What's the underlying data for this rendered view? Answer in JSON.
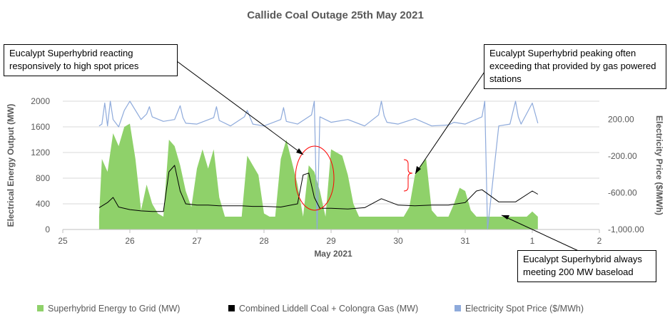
{
  "chart_data": {
    "type": "area",
    "title": "Callide Coal Outage 25th May 2021",
    "xlabel": "May 2021",
    "ylabel_left": "Electrical Energy Output (MW)",
    "ylabel_right": "Electricity Price ($/MWh)",
    "x_ticks": [
      "25",
      "26",
      "27",
      "28",
      "29",
      "30",
      "31",
      "1",
      "2"
    ],
    "x_range": [
      "2021-05-25",
      "2021-06-02"
    ],
    "ylim_left": [
      0,
      2000
    ],
    "y_ticks_left": [
      "0",
      "400",
      "800",
      "1200",
      "1600",
      "2000"
    ],
    "ylim_right": [
      -1000,
      400
    ],
    "y_ticks_right": [
      "-1,000.00",
      "-600.00",
      "-200.00",
      "200.00"
    ],
    "grid": "horizontal",
    "legend_position": "bottom",
    "series": [
      {
        "name": "Superhybrid Energy to Grid (MW)",
        "type": "area",
        "axis": "left",
        "color": "#8fd16a",
        "x": [
          "2021-05-25 13:00",
          "2021-05-25 14:00",
          "2021-05-25 16:00",
          "2021-05-25 18:00",
          "2021-05-25 20:00",
          "2021-05-25 22:00",
          "2021-05-26 00:00",
          "2021-05-26 02:00",
          "2021-05-26 04:00",
          "2021-05-26 06:00",
          "2021-05-26 08:00",
          "2021-05-26 10:00",
          "2021-05-26 12:00",
          "2021-05-26 14:00",
          "2021-05-26 16:00",
          "2021-05-26 18:00",
          "2021-05-26 20:00",
          "2021-05-26 22:00",
          "2021-05-27 00:00",
          "2021-05-27 02:00",
          "2021-05-27 04:00",
          "2021-05-27 06:00",
          "2021-05-27 08:00",
          "2021-05-27 10:00",
          "2021-05-27 12:00",
          "2021-05-27 14:00",
          "2021-05-27 16:00",
          "2021-05-27 18:00",
          "2021-05-27 20:00",
          "2021-05-27 22:00",
          "2021-05-28 00:00",
          "2021-05-28 02:00",
          "2021-05-28 04:00",
          "2021-05-28 06:00",
          "2021-05-28 08:00",
          "2021-05-28 10:00",
          "2021-05-28 12:00",
          "2021-05-28 14:00",
          "2021-05-28 16:00",
          "2021-05-28 18:00",
          "2021-05-28 20:00",
          "2021-05-28 22:00",
          "2021-05-29 00:00",
          "2021-05-29 02:00",
          "2021-05-29 04:00",
          "2021-05-29 06:00",
          "2021-05-29 08:00",
          "2021-05-29 10:00",
          "2021-05-29 12:00",
          "2021-05-29 14:00",
          "2021-05-29 16:00",
          "2021-05-29 18:00",
          "2021-05-29 20:00",
          "2021-05-29 22:00",
          "2021-05-30 00:00",
          "2021-05-30 02:00",
          "2021-05-30 04:00",
          "2021-05-30 06:00",
          "2021-05-30 08:00",
          "2021-05-30 10:00",
          "2021-05-30 12:00",
          "2021-05-30 14:00",
          "2021-05-30 16:00",
          "2021-05-30 18:00",
          "2021-05-30 20:00",
          "2021-05-30 22:00",
          "2021-05-31 00:00",
          "2021-05-31 02:00",
          "2021-05-31 04:00",
          "2021-05-31 06:00",
          "2021-05-31 08:00",
          "2021-05-31 10:00",
          "2021-05-31 12:00",
          "2021-05-31 14:00",
          "2021-05-31 16:00",
          "2021-05-31 18:00",
          "2021-05-31 20:00",
          "2021-05-31 22:00",
          "2021-06-01 00:00",
          "2021-06-01 02:00"
        ],
        "values": [
          200,
          1100,
          900,
          1500,
          1300,
          1600,
          1650,
          1100,
          300,
          700,
          400,
          250,
          200,
          1400,
          1300,
          1000,
          600,
          350,
          950,
          1250,
          950,
          1250,
          500,
          200,
          200,
          200,
          200,
          1150,
          1000,
          850,
          250,
          200,
          200,
          1100,
          1400,
          1050,
          700,
          200,
          1000,
          900,
          600,
          200,
          1250,
          1200,
          1150,
          850,
          400,
          200,
          200,
          200,
          200,
          200,
          200,
          200,
          200,
          200,
          350,
          850,
          1000,
          1100,
          300,
          200,
          200,
          200,
          400,
          650,
          600,
          300,
          200,
          200,
          200,
          200,
          200,
          200,
          200,
          200,
          200,
          200,
          280,
          200
        ]
      },
      {
        "name": "Combined Liddell Coal + Colongra Gas (MW)",
        "type": "line",
        "axis": "left",
        "color": "#000000",
        "x": [
          "2021-05-25 13:00",
          "2021-05-25 16:00",
          "2021-05-25 18:00",
          "2021-05-25 20:00",
          "2021-05-26 00:00",
          "2021-05-26 04:00",
          "2021-05-26 08:00",
          "2021-05-26 12:00",
          "2021-05-26 14:00",
          "2021-05-26 16:00",
          "2021-05-26 18:00",
          "2021-05-26 20:00",
          "2021-05-27 00:00",
          "2021-05-27 04:00",
          "2021-05-27 08:00",
          "2021-05-27 12:00",
          "2021-05-27 16:00",
          "2021-05-27 20:00",
          "2021-05-28 00:00",
          "2021-05-28 06:00",
          "2021-05-28 12:00",
          "2021-05-28 14:00",
          "2021-05-28 16:00",
          "2021-05-28 18:00",
          "2021-05-28 20:00",
          "2021-05-29 00:00",
          "2021-05-29 06:00",
          "2021-05-29 12:00",
          "2021-05-29 18:00",
          "2021-05-30 00:00",
          "2021-05-30 06:00",
          "2021-05-30 12:00",
          "2021-05-30 18:00",
          "2021-05-31 00:00",
          "2021-05-31 04:00",
          "2021-05-31 06:00",
          "2021-05-31 12:00",
          "2021-05-31 18:00",
          "2021-06-01 00:00",
          "2021-06-01 02:00"
        ],
        "values": [
          340,
          420,
          500,
          350,
          310,
          290,
          280,
          280,
          900,
          1000,
          600,
          400,
          380,
          380,
          370,
          370,
          370,
          360,
          360,
          350,
          400,
          850,
          880,
          500,
          330,
          330,
          320,
          340,
          480,
          380,
          370,
          380,
          380,
          420,
          600,
          620,
          430,
          430,
          600,
          550
        ]
      },
      {
        "name": "Electricity Spot Price ($/MWh)",
        "type": "line",
        "axis": "right",
        "color": "#8eaadb",
        "x": [
          "2021-05-25 13:00",
          "2021-05-25 14:00",
          "2021-05-25 15:00",
          "2021-05-25 16:00",
          "2021-05-25 17:00",
          "2021-05-25 18:00",
          "2021-05-25 20:00",
          "2021-05-25 22:00",
          "2021-05-26 00:00",
          "2021-05-26 04:00",
          "2021-05-26 06:00",
          "2021-05-26 07:00",
          "2021-05-26 08:00",
          "2021-05-26 12:00",
          "2021-05-26 16:00",
          "2021-05-26 18:00",
          "2021-05-26 19:00",
          "2021-05-26 20:00",
          "2021-05-27 00:00",
          "2021-05-27 06:00",
          "2021-05-27 07:00",
          "2021-05-27 08:00",
          "2021-05-27 12:00",
          "2021-05-27 17:00",
          "2021-05-27 18:00",
          "2021-05-27 20:00",
          "2021-05-28 00:00",
          "2021-05-28 06:00",
          "2021-05-28 07:00",
          "2021-05-28 08:00",
          "2021-05-28 12:00",
          "2021-05-28 17:00",
          "2021-05-28 18:00",
          "2021-05-28 19:00",
          "2021-05-28 20:00",
          "2021-05-29 00:00",
          "2021-05-29 06:00",
          "2021-05-29 12:00",
          "2021-05-29 17:00",
          "2021-05-29 18:00",
          "2021-05-29 19:00",
          "2021-05-29 20:00",
          "2021-05-30 00:00",
          "2021-05-30 06:00",
          "2021-05-30 12:00",
          "2021-05-30 18:00",
          "2021-05-30 20:00",
          "2021-05-31 00:00",
          "2021-05-31 06:00",
          "2021-05-31 07:00",
          "2021-05-31 08:00",
          "2021-05-31 12:00",
          "2021-05-31 16:00",
          "2021-05-31 18:00",
          "2021-05-31 19:00",
          "2021-05-31 20:00",
          "2021-06-01 00:00",
          "2021-06-01 02:00"
        ],
        "values": [
          130,
          150,
          380,
          130,
          400,
          200,
          120,
          300,
          400,
          200,
          260,
          340,
          230,
          180,
          200,
          350,
          220,
          160,
          150,
          220,
          340,
          190,
          130,
          230,
          300,
          150,
          130,
          200,
          330,
          180,
          150,
          250,
          400,
          -1000,
          230,
          170,
          200,
          130,
          250,
          400,
          240,
          170,
          150,
          210,
          130,
          140,
          170,
          150,
          230,
          400,
          -1000,
          130,
          150,
          400,
          230,
          150,
          380,
          160
        ]
      }
    ],
    "annotations": [
      {
        "text": "Eucalypt Superhybrid reacting responsively to high spot prices"
      },
      {
        "text": "Eucalypt Superhybrid peaking often exceeding that provided by gas powered stations"
      },
      {
        "text": "Eucalypt Superhybrid always meeting 200 MW baseload"
      }
    ]
  }
}
